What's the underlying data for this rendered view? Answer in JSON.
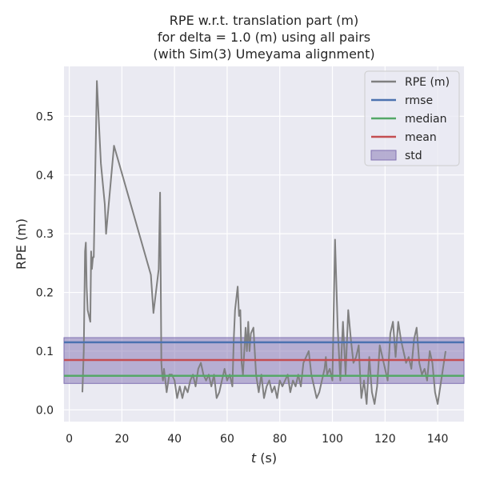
{
  "chart_data": {
    "type": "line",
    "title_lines": [
      "RPE w.r.t. translation part (m)",
      "for delta = 1.0 (m) using all pairs",
      "(with Sim(3) Umeyama alignment)"
    ],
    "xlabel_var": "t",
    "xlabel_unit": " (s)",
    "ylabel": "RPE (m)",
    "xlim": [
      -2,
      150
    ],
    "ylim": [
      -0.02,
      0.585
    ],
    "xticks": [
      0,
      20,
      40,
      60,
      80,
      100,
      120,
      140
    ],
    "yticks": [
      0.0,
      0.1,
      0.2,
      0.3,
      0.4,
      0.5
    ],
    "ytick_labels": [
      "0.0",
      "0.1",
      "0.2",
      "0.3",
      "0.4",
      "0.5"
    ],
    "grid": true,
    "legend_position": "top-right",
    "colors": {
      "background": "#eaeaf2",
      "grid": "#ffffff",
      "rpe": "#808080",
      "rmse": "#4c72b0",
      "median": "#55a868",
      "mean": "#c44e52",
      "std": "#8172b2"
    },
    "legend": [
      {
        "label": "RPE (m)",
        "kind": "line",
        "color": "#808080"
      },
      {
        "label": "rmse",
        "kind": "line",
        "color": "#4c72b0"
      },
      {
        "label": "median",
        "kind": "line",
        "color": "#55a868"
      },
      {
        "label": "mean",
        "kind": "line",
        "color": "#c44e52"
      },
      {
        "label": "std",
        "kind": "patch",
        "color": "#8172b2"
      }
    ],
    "stats": {
      "rmse": 0.115,
      "median": 0.058,
      "mean": 0.085,
      "std_band": [
        0.045,
        0.123
      ]
    },
    "series": [
      {
        "name": "RPE (m)",
        "x": [
          5,
          5.5,
          6,
          6.3,
          6.6,
          7,
          8,
          8.3,
          8.6,
          9,
          9.3,
          10.5,
          12,
          13.5,
          14,
          17,
          31,
          32,
          34,
          34.5,
          35,
          35.3,
          35.6,
          36,
          37,
          38,
          39,
          40,
          41,
          42,
          43,
          44,
          45,
          46,
          47,
          48,
          49,
          50,
          51,
          52,
          53,
          54,
          55,
          56,
          57,
          58,
          59,
          60,
          61,
          62,
          62.5,
          63,
          64,
          64.5,
          65,
          65.5,
          66,
          67,
          67.5,
          68,
          68.5,
          69,
          70,
          71,
          72,
          73,
          74,
          75,
          76,
          77,
          78,
          79,
          80,
          81,
          82,
          83,
          84,
          85,
          86,
          87,
          88,
          89,
          90,
          91,
          92,
          93,
          94,
          95,
          96,
          97,
          97.5,
          98,
          99,
          100,
          101,
          102,
          103,
          104,
          105,
          106,
          107,
          108,
          109,
          110,
          110.5,
          111,
          112,
          113,
          114,
          115,
          116,
          117,
          118,
          119,
          120,
          121,
          122,
          123,
          124,
          125,
          126,
          127,
          128,
          129,
          130,
          131,
          132,
          133,
          134,
          135,
          136,
          137,
          138,
          139,
          140,
          141,
          142,
          143
        ],
        "y": [
          0.03,
          0.1,
          0.27,
          0.285,
          0.21,
          0.17,
          0.15,
          0.27,
          0.24,
          0.26,
          0.26,
          0.56,
          0.42,
          0.35,
          0.3,
          0.45,
          0.23,
          0.165,
          0.24,
          0.37,
          0.08,
          0.06,
          0.05,
          0.07,
          0.03,
          0.06,
          0.06,
          0.05,
          0.02,
          0.04,
          0.02,
          0.04,
          0.03,
          0.05,
          0.06,
          0.04,
          0.07,
          0.08,
          0.06,
          0.05,
          0.06,
          0.04,
          0.06,
          0.02,
          0.03,
          0.05,
          0.07,
          0.05,
          0.06,
          0.04,
          0.12,
          0.17,
          0.21,
          0.16,
          0.17,
          0.08,
          0.06,
          0.14,
          0.1,
          0.15,
          0.1,
          0.13,
          0.14,
          0.06,
          0.03,
          0.06,
          0.02,
          0.04,
          0.05,
          0.03,
          0.04,
          0.02,
          0.05,
          0.04,
          0.05,
          0.06,
          0.03,
          0.05,
          0.04,
          0.06,
          0.04,
          0.08,
          0.09,
          0.1,
          0.06,
          0.04,
          0.02,
          0.03,
          0.05,
          0.07,
          0.09,
          0.06,
          0.07,
          0.05,
          0.29,
          0.14,
          0.05,
          0.15,
          0.06,
          0.17,
          0.12,
          0.08,
          0.09,
          0.11,
          0.06,
          0.02,
          0.05,
          0.01,
          0.09,
          0.03,
          0.01,
          0.04,
          0.11,
          0.09,
          0.07,
          0.05,
          0.13,
          0.15,
          0.09,
          0.15,
          0.12,
          0.1,
          0.08,
          0.09,
          0.07,
          0.12,
          0.14,
          0.08,
          0.06,
          0.07,
          0.05,
          0.1,
          0.08,
          0.03,
          0.01,
          0.04,
          0.07,
          0.1
        ]
      }
    ]
  }
}
